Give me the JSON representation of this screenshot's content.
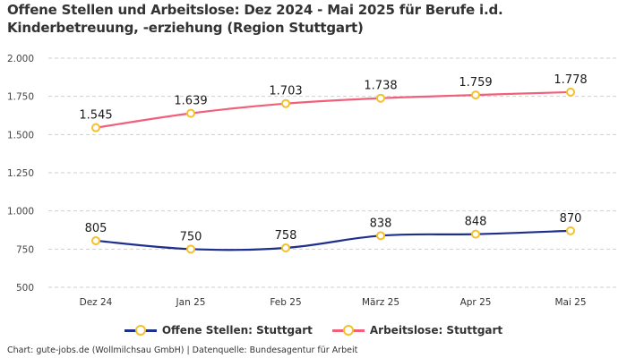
{
  "title": "Offene Stellen und Arbeitslose: Dez 2024 - Mai 2025 für Berufe i.d. Kinderbetreuung, -erziehung (Region Stuttgart)",
  "footer": "Chart: gute-jobs.de (Wollmilchsau GmbH) | Datenquelle: Bundesagentur für Arbeit",
  "chart_data": {
    "type": "line",
    "title": "Offene Stellen und Arbeitslose: Dez 2024 - Mai 2025 für Berufe i.d. Kinderbetreuung, -erziehung (Region Stuttgart)",
    "xlabel": "",
    "ylabel": "",
    "categories": [
      "Dez 24",
      "Jan 25",
      "Feb 25",
      "März 25",
      "Apr 25",
      "Mai 25"
    ],
    "ylim": [
      500,
      2000
    ],
    "yticks": [
      500,
      750,
      1000,
      1250,
      1500,
      1750,
      2000
    ],
    "ytick_labels": [
      "500",
      "750",
      "1.000",
      "1.250",
      "1.500",
      "1.750",
      "2.000"
    ],
    "grid": true,
    "legend_position": "bottom",
    "series": [
      {
        "name": "Offene Stellen: Stuttgart",
        "color": "#1f2f8c",
        "marker_color": "#f5c02a",
        "values": [
          805,
          750,
          758,
          838,
          848,
          870
        ],
        "labels": [
          "805",
          "750",
          "758",
          "838",
          "848",
          "870"
        ]
      },
      {
        "name": "Arbeitslose: Stuttgart",
        "color": "#f0607a",
        "marker_color": "#f5c02a",
        "values": [
          1545,
          1639,
          1703,
          1738,
          1759,
          1778
        ],
        "labels": [
          "1.545",
          "1.639",
          "1.703",
          "1.738",
          "1.759",
          "1.778"
        ]
      }
    ]
  }
}
